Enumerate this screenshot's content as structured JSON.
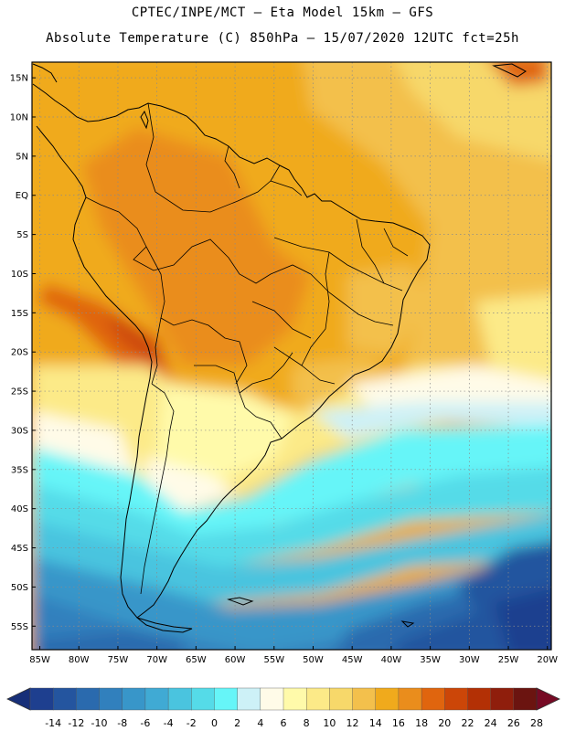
{
  "header": {
    "line1": "CPTEC/INPE/MCT –  Eta Model 15km – GFS",
    "line2": "Absolute Temperature (C) 850hPa – 15/07/2020 12UTC fct=25h"
  },
  "map": {
    "lon_range": [
      -86,
      -19.5
    ],
    "lat_range": [
      -58,
      17
    ],
    "lat_labels": [
      "15N",
      "10N",
      "5N",
      "EQ",
      "5S",
      "10S",
      "15S",
      "20S",
      "25S",
      "30S",
      "35S",
      "40S",
      "45S",
      "50S",
      "55S"
    ],
    "lat_values": [
      15,
      10,
      5,
      0,
      -5,
      -10,
      -15,
      -20,
      -25,
      -30,
      -35,
      -40,
      -45,
      -50,
      -55
    ],
    "lon_labels": [
      "85W",
      "80W",
      "75W",
      "70W",
      "65W",
      "60W",
      "55W",
      "50W",
      "45W",
      "40W",
      "35W",
      "30W",
      "25W",
      "20W"
    ],
    "lon_values": [
      -85,
      -80,
      -75,
      -70,
      -65,
      -60,
      -55,
      -50,
      -45,
      -40,
      -35,
      -30,
      -25,
      -20
    ],
    "grid": "dotted"
  },
  "colorbar": {
    "labels": [
      "-14",
      "-12",
      "-10",
      "-8",
      "-6",
      "-4",
      "-2",
      "0",
      "2",
      "4",
      "6",
      "8",
      "10",
      "12",
      "14",
      "16",
      "18",
      "20",
      "22",
      "24",
      "26",
      "28"
    ],
    "colors": [
      "#1e3f8f",
      "#24559f",
      "#2a6aae",
      "#3180bd",
      "#3896c9",
      "#40aad4",
      "#4ac4df",
      "#55dbe8",
      "#66f5f8",
      "#cdf1f7",
      "#fffbe8",
      "#fffaaa",
      "#fcea88",
      "#f7d86a",
      "#f3c04c",
      "#f0aa1c",
      "#ea8d1c",
      "#e0650e",
      "#cc4608",
      "#b33005",
      "#8f1e0c",
      "#6b1410"
    ],
    "under_color": "#172f78",
    "over_color": "#760a24"
  }
}
